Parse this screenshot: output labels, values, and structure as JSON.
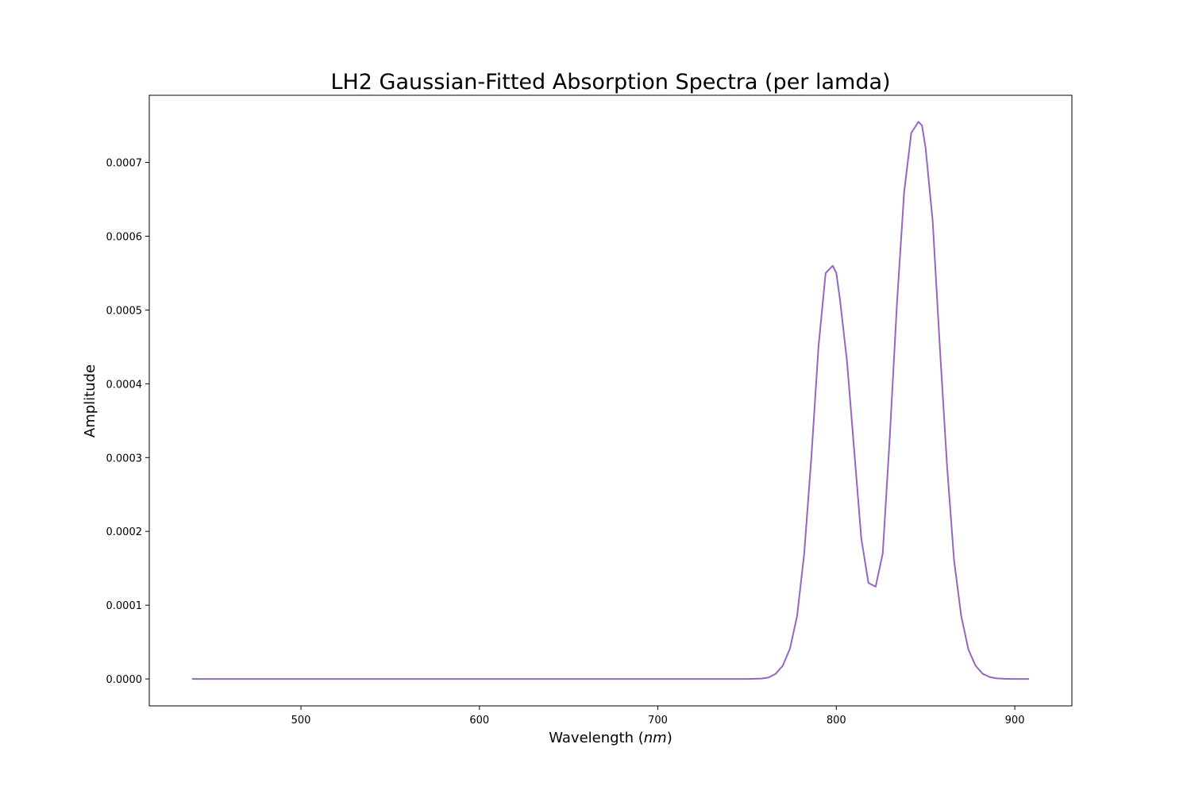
{
  "chart_data": {
    "type": "line",
    "title": "LH2 Gaussian-Fitted Absorption Spectra (per lamda)",
    "xlabel_main": "Wavelength (",
    "xlabel_italic": "nm",
    "xlabel_end": ")",
    "ylabel": "Amplitude",
    "xlim": [
      415,
      932
    ],
    "ylim": [
      -3.65e-05,
      0.000791
    ],
    "xticks": [
      500,
      600,
      700,
      800,
      900
    ],
    "yticks": [
      0.0,
      0.0001,
      0.0002,
      0.0003,
      0.0004,
      0.0005,
      0.0006,
      0.0007
    ],
    "xtick_labels": [
      "500",
      "600",
      "700",
      "800",
      "900"
    ],
    "ytick_labels": [
      "0.0000",
      "0.0001",
      "0.0002",
      "0.0003",
      "0.0004",
      "0.0005",
      "0.0006",
      "0.0007"
    ],
    "line_color": "#9467bd",
    "series": [
      {
        "x": [
          439,
          500,
          600,
          700,
          750,
          758,
          762,
          766,
          770,
          774,
          778,
          782,
          786,
          790,
          794,
          798,
          800,
          802,
          806,
          810,
          814,
          818,
          822,
          826,
          830,
          834,
          838,
          842,
          846,
          848,
          850,
          854,
          858,
          862,
          866,
          870,
          874,
          878,
          882,
          886,
          890,
          894,
          900,
          908
        ],
        "y": [
          0.0,
          0.0,
          0.0,
          0.0,
          0.0,
          5e-07,
          2e-06,
          7e-06,
          1.8e-05,
          4.1e-05,
          8.5e-05,
          0.00017,
          0.0003,
          0.00045,
          0.00055,
          0.00056,
          0.00055,
          0.000515,
          0.00043,
          0.00031,
          0.00019,
          0.00013,
          0.000125,
          0.00017,
          0.00033,
          0.00051,
          0.00066,
          0.00074,
          0.000755,
          0.00075,
          0.00072,
          0.00062,
          0.00045,
          0.00029,
          0.00016,
          8.5e-05,
          4e-05,
          1.8e-05,
          7e-06,
          2.5e-06,
          8e-07,
          2e-07,
          0.0,
          0.0
        ]
      }
    ]
  }
}
